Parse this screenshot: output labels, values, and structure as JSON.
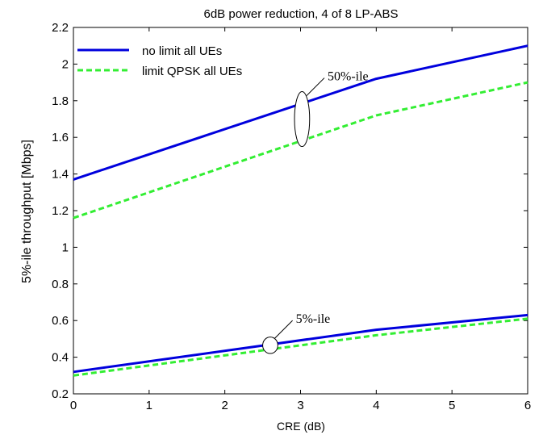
{
  "chart_data": {
    "type": "line",
    "title": "6dB power reduction, 4 of 8 LP-ABS",
    "xlabel": "CRE (dB)",
    "ylabel": "5%-ile throughput [Mbps]",
    "xlim": [
      0,
      6
    ],
    "ylim": [
      0.2,
      2.2
    ],
    "xticks": [
      "0",
      "1",
      "2",
      "3",
      "4",
      "5",
      "6"
    ],
    "yticks": [
      "0.2",
      "0.4",
      "0.6",
      "0.8",
      "1",
      "1.2",
      "1.4",
      "1.6",
      "1.8",
      "2",
      "2.2"
    ],
    "grid": false,
    "legend_position": "top-left",
    "legend": [
      "no limit all UEs",
      "limit QPSK all UEs"
    ],
    "series": [
      {
        "name": "no limit all UEs",
        "group": "50%-ile",
        "color": "#0000dd",
        "style": "solid",
        "x": [
          0,
          4,
          6
        ],
        "y": [
          1.37,
          1.92,
          2.1
        ]
      },
      {
        "name": "limit QPSK all UEs",
        "group": "50%-ile",
        "color": "#33ee33",
        "style": "dashed",
        "x": [
          0,
          4,
          6
        ],
        "y": [
          1.16,
          1.72,
          1.9
        ]
      },
      {
        "name": "no limit all UEs",
        "group": "5%-ile",
        "color": "#0000dd",
        "style": "solid",
        "x": [
          0,
          4,
          6
        ],
        "y": [
          0.32,
          0.55,
          0.63
        ]
      },
      {
        "name": "limit QPSK all UEs",
        "group": "5%-ile",
        "color": "#33ee33",
        "style": "dashed",
        "x": [
          0,
          4,
          6
        ],
        "y": [
          0.3,
          0.52,
          0.61
        ]
      }
    ],
    "annotations": [
      {
        "text": "50%-ile",
        "target_x": 3.02,
        "target_y": 1.7,
        "ellipse_height": 0.3,
        "ellipse_width": 0.2
      },
      {
        "text": "5%-ile",
        "target_x": 2.6,
        "target_y": 0.465,
        "ellipse_height": 0.09,
        "ellipse_width": 0.2
      }
    ]
  }
}
